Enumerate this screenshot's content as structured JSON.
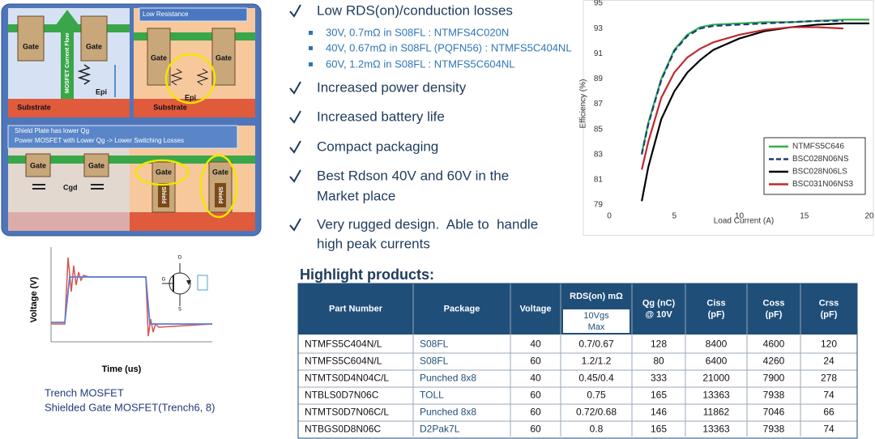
{
  "diagram": {
    "panel_1": {
      "gate_left": "Gate",
      "gate_right": "Gate",
      "current_flow": "MOSFET Current Flow",
      "epi": "Epi",
      "substrate": "Substrate"
    },
    "panel_2": {
      "title": "Low Resistance",
      "gate_left": "Gate",
      "gate_right": "Gate",
      "epi": "Epi",
      "substrate": "Substrate"
    },
    "panel_3": {
      "title_1": "Shield Plate has lower Qg",
      "title_2": "Power MOSFET with Lower Qg -> Lower Switching Losses",
      "gate_1": "Gate",
      "gate_2": "Gate",
      "cgd": "Cgd",
      "gate_3": "Gate",
      "gate_4": "Gate",
      "shield_1": "Shield",
      "shield_2": "Shield"
    }
  },
  "waveform": {
    "ylabel": "Voltage (V)",
    "xlabel": "Time (us)",
    "pin_d": "D",
    "pin_g": "G",
    "pin_s": "S"
  },
  "captions": [
    "Trench MOSFET",
    "Shielded Gate MOSFET(Trench6, 8)"
  ],
  "bullets": [
    {
      "lines": [
        "Low RDS(on)/conduction losses"
      ],
      "sub": [
        "30V, 0.7mΩ in S08FL : NTMFS4C020N",
        "40V, 0.67mΩ in S08FL (PQFN56) : NTMFS5C404NL",
        "60V, 1.2mΩ in S08FL : NTMFS5C604NL"
      ]
    },
    {
      "lines": [
        "Increased power density"
      ]
    },
    {
      "lines": [
        "Increased battery life"
      ]
    },
    {
      "lines": [
        "Compact packaging"
      ]
    },
    {
      "lines": [
        "Best Rdson 40V and 60V in the",
        "Market place"
      ]
    },
    {
      "lines": [
        "Very rugged design.  Able to  handle",
        "high peak currents"
      ]
    }
  ],
  "chart_data": {
    "type": "line",
    "xlabel": "Load Current (A)",
    "ylabel": "Efficiency (%)",
    "x": [
      2.5,
      3,
      4,
      5,
      6,
      7,
      8,
      10,
      12,
      14,
      16,
      18,
      20
    ],
    "series": [
      {
        "name": "NTMFS5C646",
        "color": "#2db34a",
        "dash": false,
        "values": [
          83.1,
          85.5,
          89,
          91.3,
          92.5,
          93.1,
          93.3,
          93.4,
          93.5,
          93.5,
          93.6,
          93.7,
          93.7
        ]
      },
      {
        "name": "BSC028N06NS",
        "color": "#1f3a7a",
        "dash": true,
        "values": [
          83.0,
          85.4,
          88.9,
          91.2,
          92.4,
          93.0,
          93.2,
          93.3,
          93.4,
          93.5,
          93.6,
          93.6,
          null
        ]
      },
      {
        "name": "BSC028N06LS",
        "color": "#000000",
        "dash": false,
        "values": [
          79.3,
          82,
          85.8,
          88,
          89.5,
          90.5,
          91.3,
          92.2,
          92.8,
          93.1,
          93.3,
          93.4,
          93.4
        ]
      },
      {
        "name": "BSC031N06NS3",
        "color": "#c0282d",
        "dash": false,
        "values": [
          81.8,
          84,
          87.5,
          89.5,
          90.7,
          91.4,
          91.9,
          92.5,
          92.9,
          93.1,
          93.1,
          93.0,
          null
        ]
      }
    ],
    "xlim": [
      0,
      20
    ],
    "xticks": [
      0,
      5,
      10,
      15,
      20
    ],
    "ylim": [
      79,
      95
    ],
    "yticks": [
      79,
      81,
      83,
      85,
      87,
      89,
      91,
      93,
      95
    ],
    "grid": false,
    "legend": "lower right"
  },
  "table": {
    "title": "Highlight products:",
    "columns": [
      [
        "Part Number"
      ],
      [
        "Package"
      ],
      [
        "Voltage"
      ],
      [
        "RDS(on) mΩ"
      ],
      [
        "Qg (nC)",
        "@ 10V"
      ],
      [
        "Ciss",
        "(pF)"
      ],
      [
        "Coss",
        "(pF)"
      ],
      [
        "Crss",
        "(pF)"
      ]
    ],
    "rds_condition": [
      "10Vgs",
      "Max"
    ],
    "rows": [
      [
        "NTMFS5C404N/L",
        "S08FL",
        "40",
        "0.7/0.67",
        "128",
        "8400",
        "4600",
        "120"
      ],
      [
        "NTMFS5C604N/L",
        "S08FL",
        "60",
        "1.2/1.2",
        "80",
        "6400",
        "4260",
        "24"
      ],
      [
        "NTMTS0D4N04C/L",
        "Punched 8x8",
        "40",
        "0.45/0.4",
        "333",
        "21000",
        "7900",
        "278"
      ],
      [
        "NTBLS0D7N06C",
        "TOLL",
        "60",
        "0.75",
        "165",
        "13363",
        "7938",
        "74"
      ],
      [
        "NTMTS0D7N06C/L",
        "Punched 8x8",
        "60",
        "0.72/0.68",
        "146",
        "11862",
        "7046",
        "66"
      ],
      [
        "NTBGS0D8N06C",
        "D2Pak7L",
        "60",
        "0.8",
        "165",
        "13363",
        "7938",
        "74"
      ]
    ]
  }
}
